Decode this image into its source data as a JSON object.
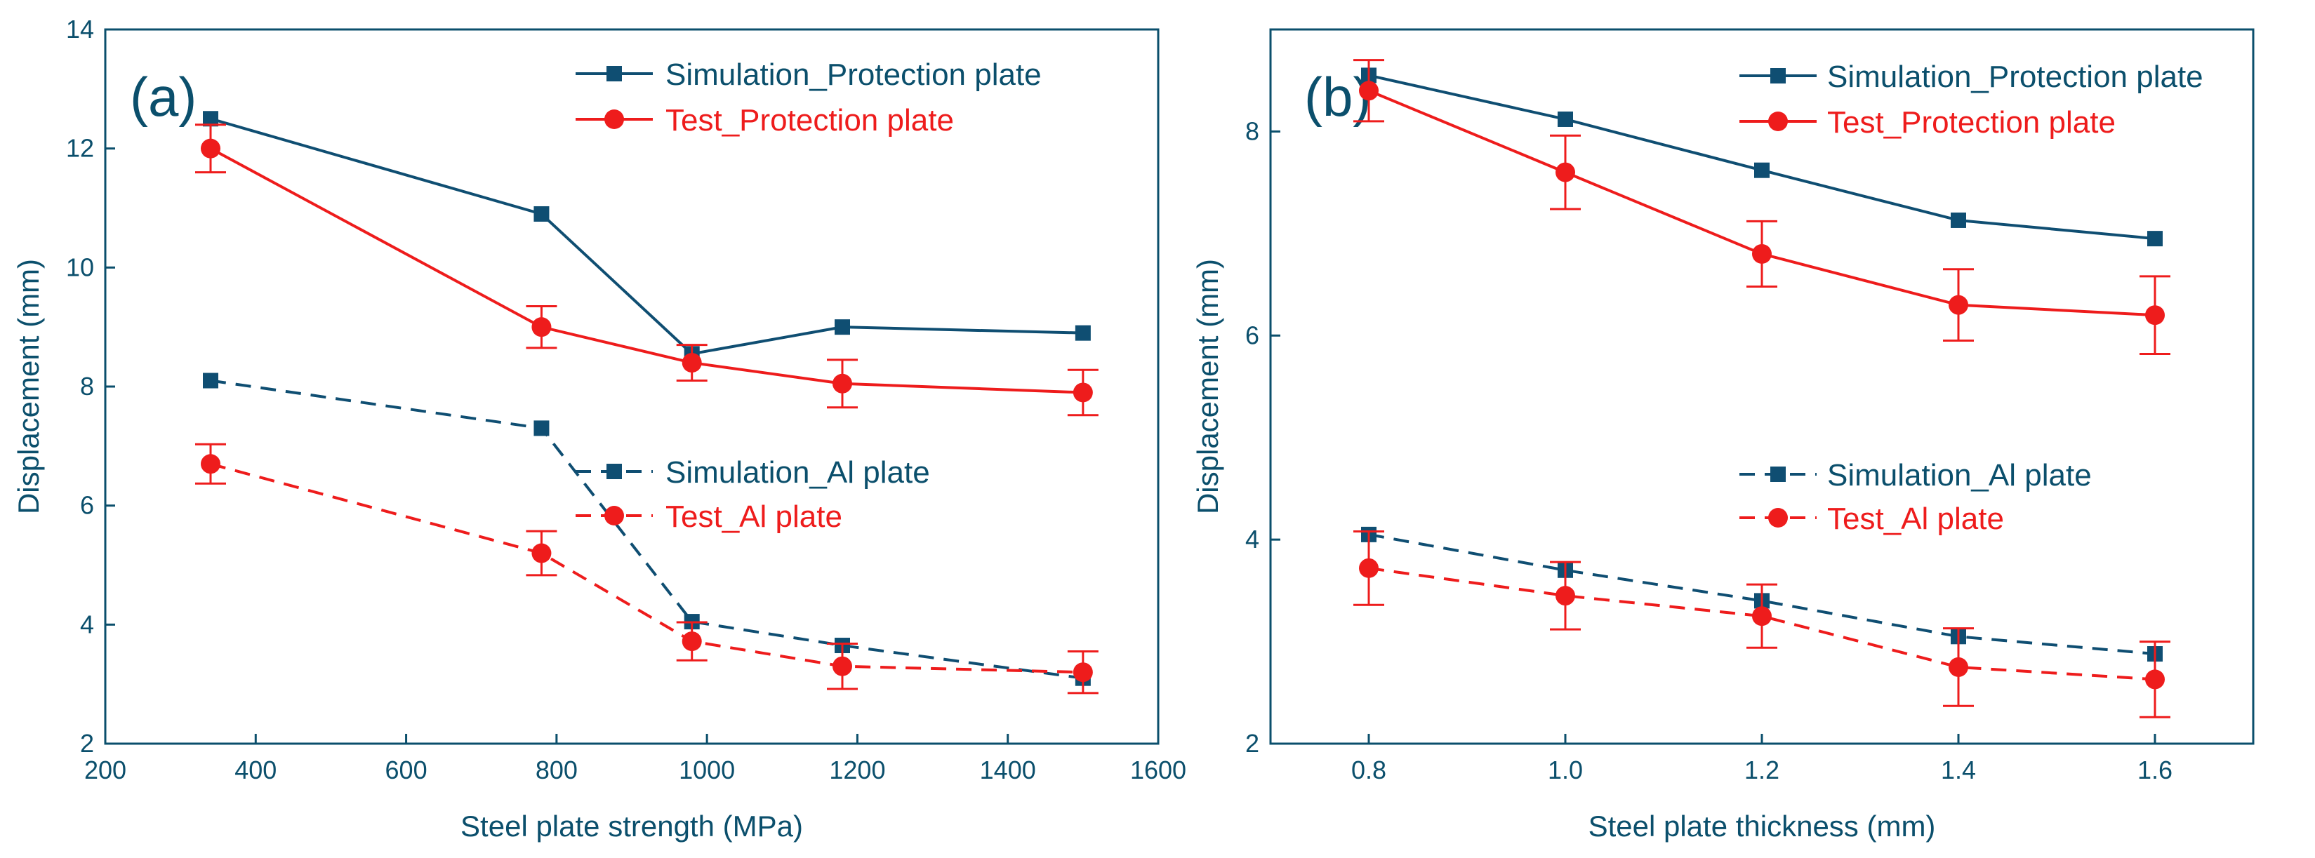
{
  "colors": {
    "sim": "#0f4e72",
    "test": "#ee1c1c",
    "axis": "#0b4f6c"
  },
  "chart_data": [
    {
      "type": "line",
      "panel_label": "(a)",
      "xlabel": "Steel plate strength (MPa)",
      "ylabel": "Displacement (mm)",
      "xlim": [
        200,
        1600
      ],
      "ylim": [
        2,
        14
      ],
      "xticks": [
        200,
        400,
        600,
        800,
        1000,
        1200,
        1400,
        1600
      ],
      "yticks": [
        2,
        4,
        6,
        8,
        10,
        12,
        14
      ],
      "x": [
        340,
        780,
        980,
        1180,
        1500
      ],
      "series": [
        {
          "name": "Simulation_Protection plate",
          "style": "solid",
          "marker": "square",
          "color": "sim",
          "values": [
            12.5,
            10.9,
            8.55,
            9.0,
            8.9
          ]
        },
        {
          "name": "Test_Protection plate",
          "style": "solid",
          "marker": "circle",
          "color": "test",
          "values": [
            12.0,
            9.0,
            8.4,
            8.05,
            7.9
          ],
          "errors": [
            0.4,
            0.35,
            0.3,
            0.4,
            0.38
          ]
        },
        {
          "name": "Simulation_Al plate",
          "style": "dashed",
          "marker": "square",
          "color": "sim",
          "values": [
            8.1,
            7.3,
            4.05,
            3.65,
            3.1
          ]
        },
        {
          "name": "Test_Al plate",
          "style": "dashed",
          "marker": "circle",
          "color": "test",
          "values": [
            6.7,
            5.2,
            3.72,
            3.3,
            3.2
          ],
          "errors": [
            0.33,
            0.37,
            0.32,
            0.38,
            0.35
          ]
        }
      ],
      "legend": {
        "position": "top-right and middle"
      }
    },
    {
      "type": "line",
      "panel_label": "(b)",
      "xlabel": "Steel plate thickness (mm)",
      "ylabel": "Displacement (mm)",
      "xlim": [
        0.7,
        1.7
      ],
      "ylim": [
        2,
        9
      ],
      "xticks": [
        0.8,
        1.0,
        1.2,
        1.4,
        1.6
      ],
      "xtick_labels": [
        "0.8",
        "1.0",
        "1.2",
        "1.4",
        "1.6"
      ],
      "yticks": [
        2,
        4,
        6,
        8
      ],
      "x": [
        0.8,
        1.0,
        1.2,
        1.4,
        1.6
      ],
      "series": [
        {
          "name": "Simulation_Protection plate",
          "style": "solid",
          "marker": "square",
          "color": "sim",
          "values": [
            8.55,
            8.12,
            7.62,
            7.13,
            6.95
          ]
        },
        {
          "name": "Test_Protection plate",
          "style": "solid",
          "marker": "circle",
          "color": "test",
          "values": [
            8.4,
            7.6,
            6.8,
            6.3,
            6.2
          ],
          "errors": [
            0.3,
            0.36,
            0.32,
            0.35,
            0.38
          ]
        },
        {
          "name": "Simulation_Al plate",
          "style": "dashed",
          "marker": "square",
          "color": "sim",
          "values": [
            4.05,
            3.7,
            3.4,
            3.05,
            2.88
          ]
        },
        {
          "name": "Test_Al plate",
          "style": "dashed",
          "marker": "circle",
          "color": "test",
          "values": [
            3.72,
            3.45,
            3.25,
            2.75,
            2.63
          ],
          "errors": [
            0.36,
            0.33,
            0.31,
            0.38,
            0.37
          ]
        }
      ],
      "legend": {
        "position": "top-right and middle"
      }
    }
  ]
}
